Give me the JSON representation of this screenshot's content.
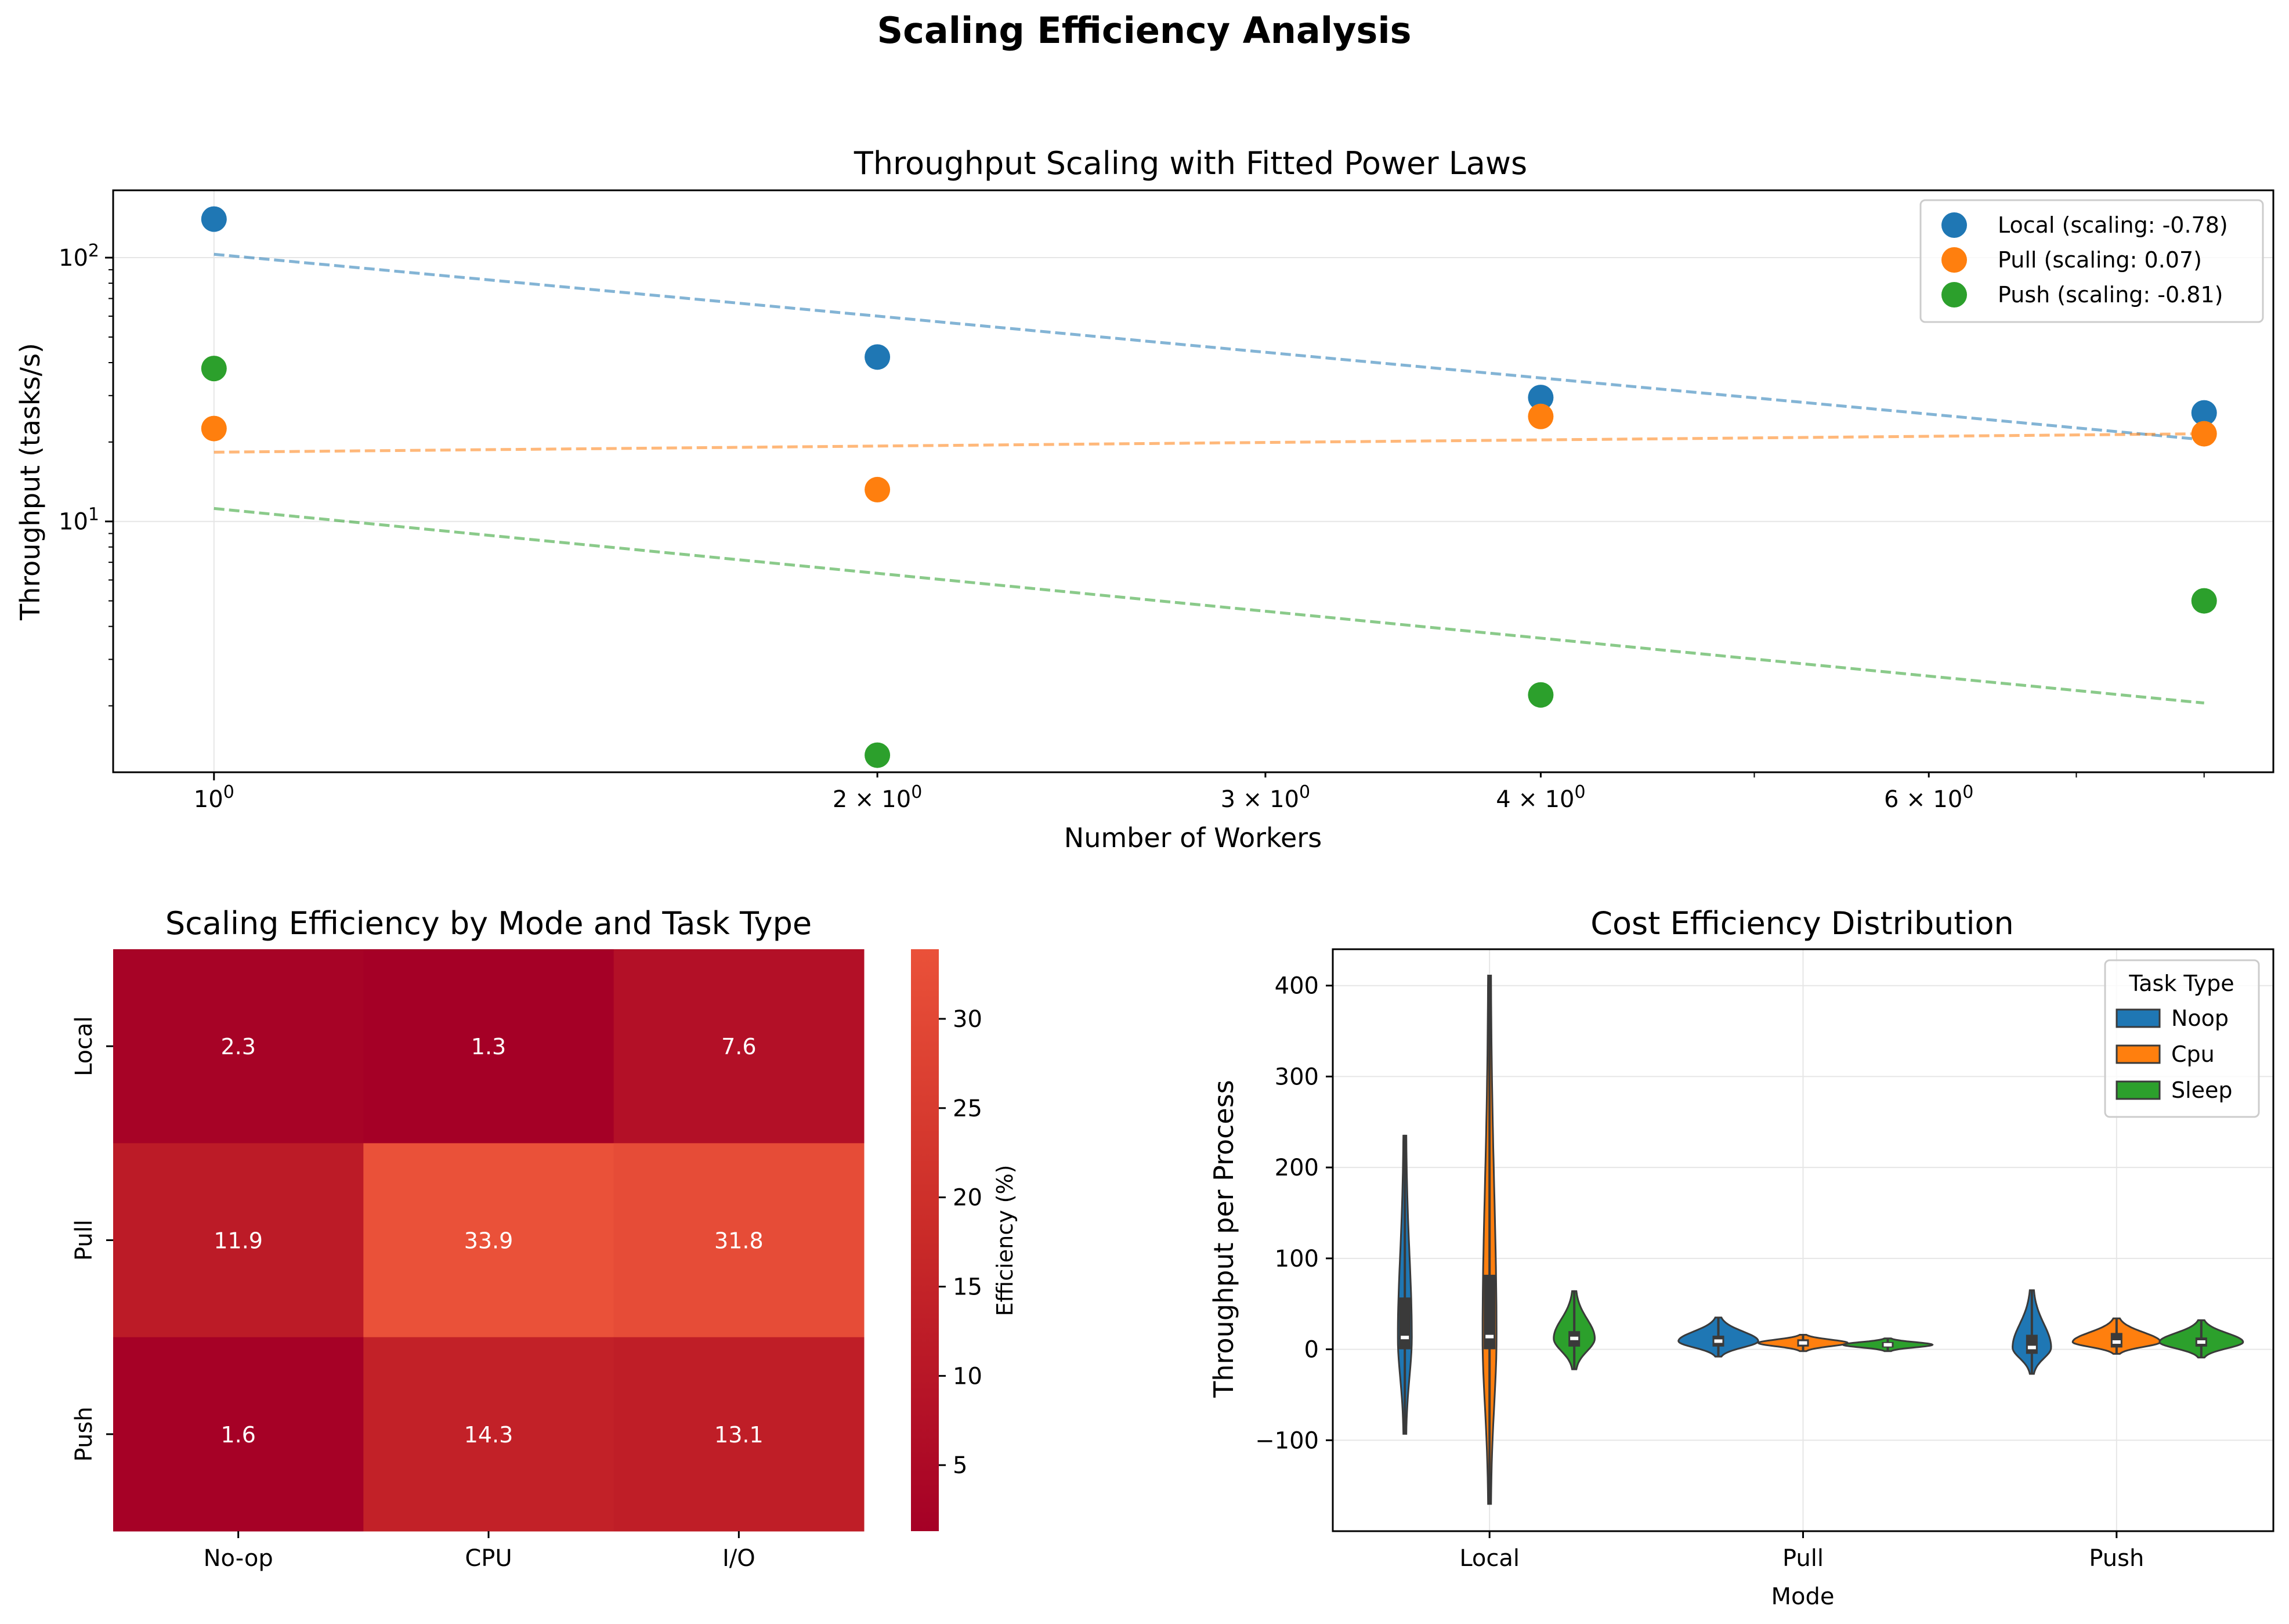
{
  "figure_title": "Scaling Efficiency Analysis",
  "colors": {
    "blue": "#1f77b4",
    "orange": "#ff7f0e",
    "green": "#2ca02c"
  },
  "chart_data": [
    {
      "type": "scatter",
      "title": "Throughput Scaling with Fitted Power Laws",
      "xlabel": "Number of Workers",
      "ylabel": "Throughput (tasks/s)",
      "xscale": "log",
      "yscale": "log",
      "xlim": [
        0.9,
        8.6
      ],
      "ylim": [
        1.12,
        180
      ],
      "x_ticks": [
        {
          "value": 1,
          "base": "10",
          "exp": "0",
          "mult": ""
        },
        {
          "value": 2,
          "base": "10",
          "exp": "0",
          "mult": "2 × "
        },
        {
          "value": 3,
          "base": "10",
          "exp": "0",
          "mult": "3 × "
        },
        {
          "value": 4,
          "base": "10",
          "exp": "0",
          "mult": "4 × "
        },
        {
          "value": 6,
          "base": "10",
          "exp": "0",
          "mult": "6 × "
        }
      ],
      "y_ticks": [
        {
          "value": 10,
          "base": "10",
          "exp": "1"
        },
        {
          "value": 100,
          "base": "10",
          "exp": "2"
        }
      ],
      "grid": true,
      "legend_position": "top-right",
      "x": [
        1,
        2,
        4,
        8
      ],
      "series": [
        {
          "name": "Local (scaling: -0.78)",
          "color": "#1f77b4",
          "values": [
            140,
            42,
            29.5,
            25.8
          ],
          "fit": [
            103,
            20.4
          ]
        },
        {
          "name": "Pull (scaling: 0.07)",
          "color": "#ff7f0e",
          "values": [
            22.5,
            13.2,
            25,
            21.5
          ],
          "fit": [
            18.3,
            21.5
          ]
        },
        {
          "name": "Push (scaling: -0.81)",
          "color": "#2ca02c",
          "values": [
            38,
            1.3,
            2.2,
            5
          ],
          "fit": [
            11.2,
            2.05
          ]
        }
      ]
    },
    {
      "type": "heatmap",
      "title": "Scaling Efficiency by Mode and Task Type",
      "rows": [
        "Local",
        "Pull",
        "Push"
      ],
      "columns": [
        "No-op",
        "CPU",
        "I/O"
      ],
      "values": [
        [
          2.3,
          1.3,
          7.6
        ],
        [
          11.9,
          33.9,
          31.8
        ],
        [
          1.6,
          14.3,
          13.1
        ]
      ],
      "value_labels": [
        [
          "2.3",
          "1.3",
          "7.6"
        ],
        [
          "11.9",
          "33.9",
          "31.8"
        ],
        [
          "1.6",
          "14.3",
          "13.1"
        ]
      ],
      "colorbar_label": "Efficiency (%)",
      "colorbar_range": [
        1.3,
        33.9
      ],
      "colorbar_ticks": [
        5,
        10,
        15,
        20,
        25,
        30
      ],
      "colorbar_tick_labels": [
        "5",
        "10",
        "15",
        "20",
        "25",
        "30"
      ],
      "colormap": "Reds (dark red at low, orange-red at high)"
    },
    {
      "type": "violin",
      "title": "Cost Efficiency Distribution",
      "xlabel": "Mode",
      "ylabel": "Throughput per Process",
      "categories": [
        "Local",
        "Pull",
        "Push"
      ],
      "ylim": [
        -200,
        440
      ],
      "y_ticks": [
        -100,
        0,
        100,
        200,
        300,
        400
      ],
      "y_tick_labels": [
        "−100",
        "0",
        "100",
        "200",
        "300",
        "400"
      ],
      "grid": true,
      "legend_title": "Task Type",
      "legend_position": "top-right",
      "series": [
        {
          "name": "Noop",
          "color": "#1f77b4",
          "violins": [
            {
              "min": -93,
              "max": 235,
              "q1": 0,
              "median": 13,
              "q3": 57
            },
            {
              "min": -8,
              "max": 35,
              "q1": 3,
              "median": 9,
              "q3": 15
            },
            {
              "min": -27,
              "max": 65,
              "q1": -5,
              "median": 2,
              "q3": 16
            }
          ]
        },
        {
          "name": "Cpu",
          "color": "#ff7f0e",
          "violins": [
            {
              "min": -170,
              "max": 411,
              "q1": 0,
              "median": 14,
              "q3": 82
            },
            {
              "min": -2,
              "max": 16,
              "q1": 3,
              "median": 7,
              "q3": 11
            },
            {
              "min": -5,
              "max": 34,
              "q1": 2,
              "median": 8,
              "q3": 18
            }
          ]
        },
        {
          "name": "Sleep",
          "color": "#2ca02c",
          "violins": [
            {
              "min": -22,
              "max": 64,
              "q1": 3,
              "median": 12,
              "q3": 20
            },
            {
              "min": -2,
              "max": 12,
              "q1": 2,
              "median": 5,
              "q3": 8
            },
            {
              "min": -9,
              "max": 32,
              "q1": 3,
              "median": 8,
              "q3": 13
            }
          ]
        }
      ]
    }
  ]
}
